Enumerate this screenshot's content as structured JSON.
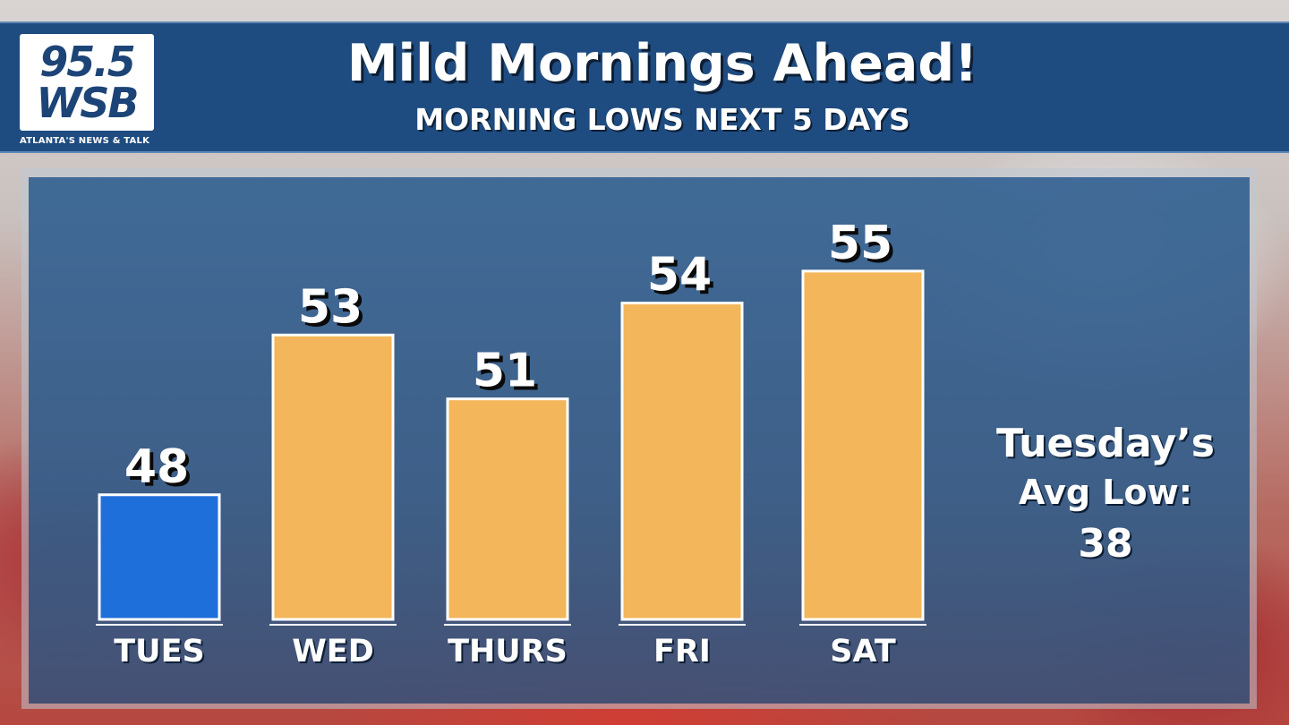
{
  "header": {
    "logo_number": "95.5",
    "logo_call": "WSB",
    "tagline": "ATLANTA'S NEWS & TALK",
    "title": "Mild Mornings Ahead!",
    "subtitle": "MORNING LOWS NEXT 5 DAYS"
  },
  "note": {
    "line1": "Tuesday’s",
    "line2": "Avg Low:",
    "line3": "38"
  },
  "colors": {
    "header_bg": "#1f4c80",
    "highlight_bar": "#1f6fdb",
    "bar": "#f3b65a"
  },
  "chart_data": {
    "type": "bar",
    "title": "Mild Mornings Ahead!",
    "subtitle": "MORNING LOWS NEXT 5 DAYS",
    "categories": [
      "TUES",
      "WED",
      "THURS",
      "FRI",
      "SAT"
    ],
    "values": [
      48,
      53,
      51,
      54,
      55
    ],
    "bar_colors": [
      "#1f6fdb",
      "#f3b65a",
      "#f3b65a",
      "#f3b65a",
      "#f3b65a"
    ],
    "xlabel": "",
    "ylabel": "",
    "grid": false,
    "data_labels": true
  }
}
